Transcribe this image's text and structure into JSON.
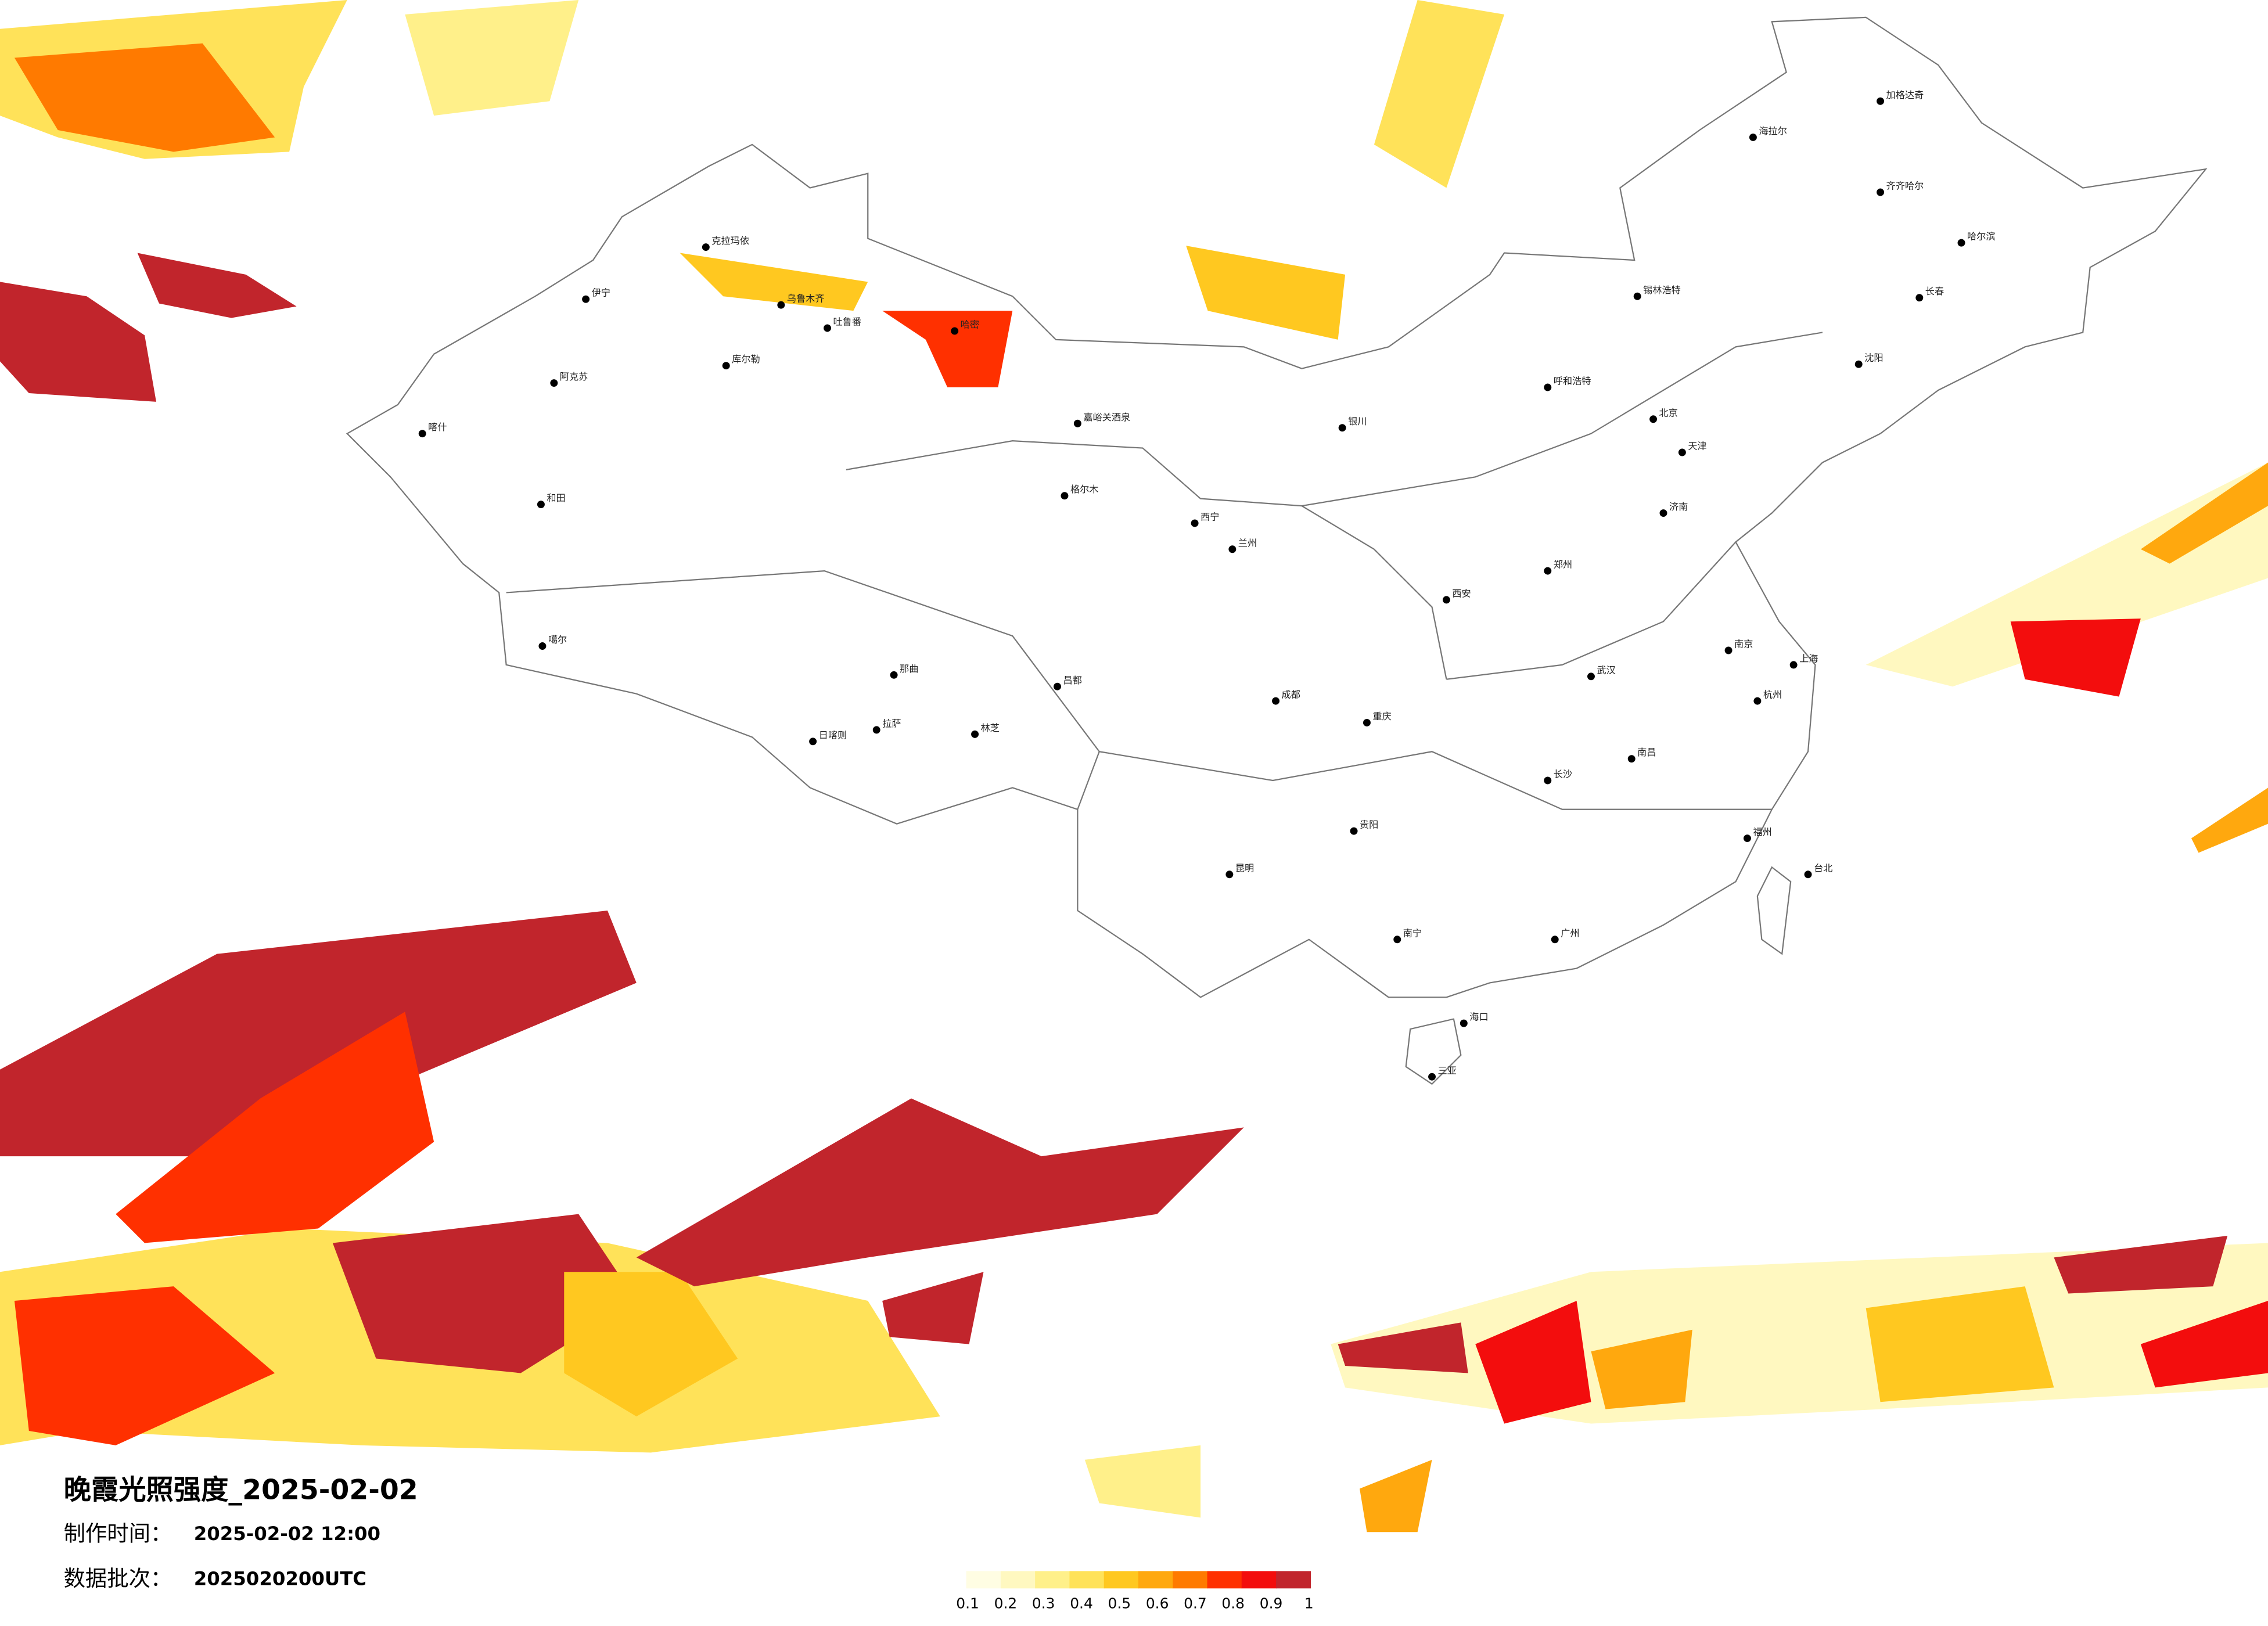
{
  "title": "晚霞光照强度_2025-02-02",
  "production_time": {
    "label": "制作时间：",
    "value": "2025-02-02 12:00"
  },
  "data_batch": {
    "label": "数据批次：",
    "value": "2025020200UTC"
  },
  "colorbar": {
    "colors": [
      "#fffde3",
      "#fff8c0",
      "#fff08a",
      "#ffe259",
      "#ffc820",
      "#ffa80e",
      "#ff7a00",
      "#ff3000",
      "#f30d0d",
      "#c1252c"
    ],
    "ticks": [
      0.1,
      0.2,
      0.3,
      0.4,
      0.5,
      0.6,
      0.7,
      0.8,
      0.9,
      1
    ]
  },
  "cities": [
    "克拉玛依",
    "伊宁",
    "乌鲁木齐",
    "吐鲁番",
    "哈密",
    "库尔勒",
    "阿克苏",
    "喀什",
    "和田",
    "嘉峪关酒泉",
    "格尔木",
    "噶尔",
    "那曲",
    "拉萨",
    "日喀则",
    "林芝",
    "昌都",
    "西宁",
    "兰州",
    "银川",
    "呼和浩特",
    "北京",
    "天津",
    "哈尔滨",
    "长春",
    "沈阳",
    "济南",
    "郑州",
    "西安",
    "成都",
    "重庆",
    "武汉",
    "南京",
    "上海",
    "杭州",
    "长沙",
    "南昌",
    "福州",
    "贵阳",
    "昆明",
    "南宁",
    "广州",
    "海口",
    "台北",
    "三亚",
    "海拉尔",
    "加格达奇",
    "齐齐哈尔",
    "锡林浩特"
  ]
}
